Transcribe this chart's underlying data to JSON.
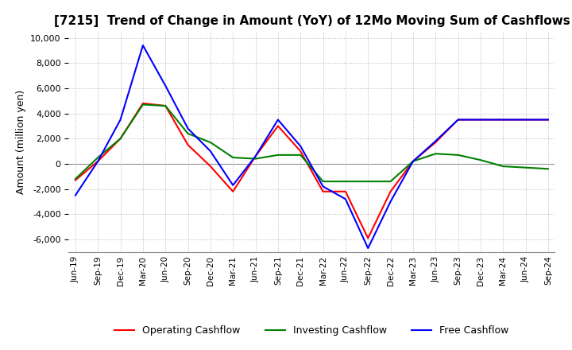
{
  "title": "[7215]  Trend of Change in Amount (YoY) of 12Mo Moving Sum of Cashflows",
  "ylabel": "Amount (million yen)",
  "ylim": [
    -7000,
    10500
  ],
  "yticks": [
    -6000,
    -4000,
    -2000,
    0,
    2000,
    4000,
    6000,
    8000,
    10000
  ],
  "x_labels": [
    "Jun-19",
    "Sep-19",
    "Dec-19",
    "Mar-20",
    "Jun-20",
    "Sep-20",
    "Dec-20",
    "Mar-21",
    "Jun-21",
    "Sep-21",
    "Dec-21",
    "Mar-22",
    "Jun-22",
    "Sep-22",
    "Dec-22",
    "Mar-23",
    "Jun-23",
    "Sep-23",
    "Dec-23",
    "Mar-24",
    "Jun-24",
    "Sep-24"
  ],
  "operating": [
    -1300,
    200,
    2000,
    4800,
    4600,
    1500,
    -200,
    -2200,
    600,
    3000,
    1000,
    -2200,
    -2200,
    -5900,
    -2200,
    200,
    1700,
    3500,
    3500,
    3500,
    3500,
    3500
  ],
  "investing": [
    -1200,
    500,
    2000,
    4700,
    4600,
    2400,
    1700,
    500,
    400,
    700,
    700,
    -1400,
    -1400,
    -1400,
    -1400,
    200,
    800,
    700,
    300,
    -200,
    -300,
    -400
  ],
  "free": [
    -2500,
    200,
    3500,
    9400,
    6200,
    2800,
    1000,
    -1700,
    600,
    3500,
    1400,
    -1800,
    -2800,
    -6700,
    -3000,
    200,
    1800,
    3500,
    3500,
    3500,
    3500,
    3500
  ],
  "operating_color": "#ff0000",
  "investing_color": "#008000",
  "free_color": "#0000ff",
  "background_color": "#ffffff",
  "grid_color": "#aaaaaa"
}
